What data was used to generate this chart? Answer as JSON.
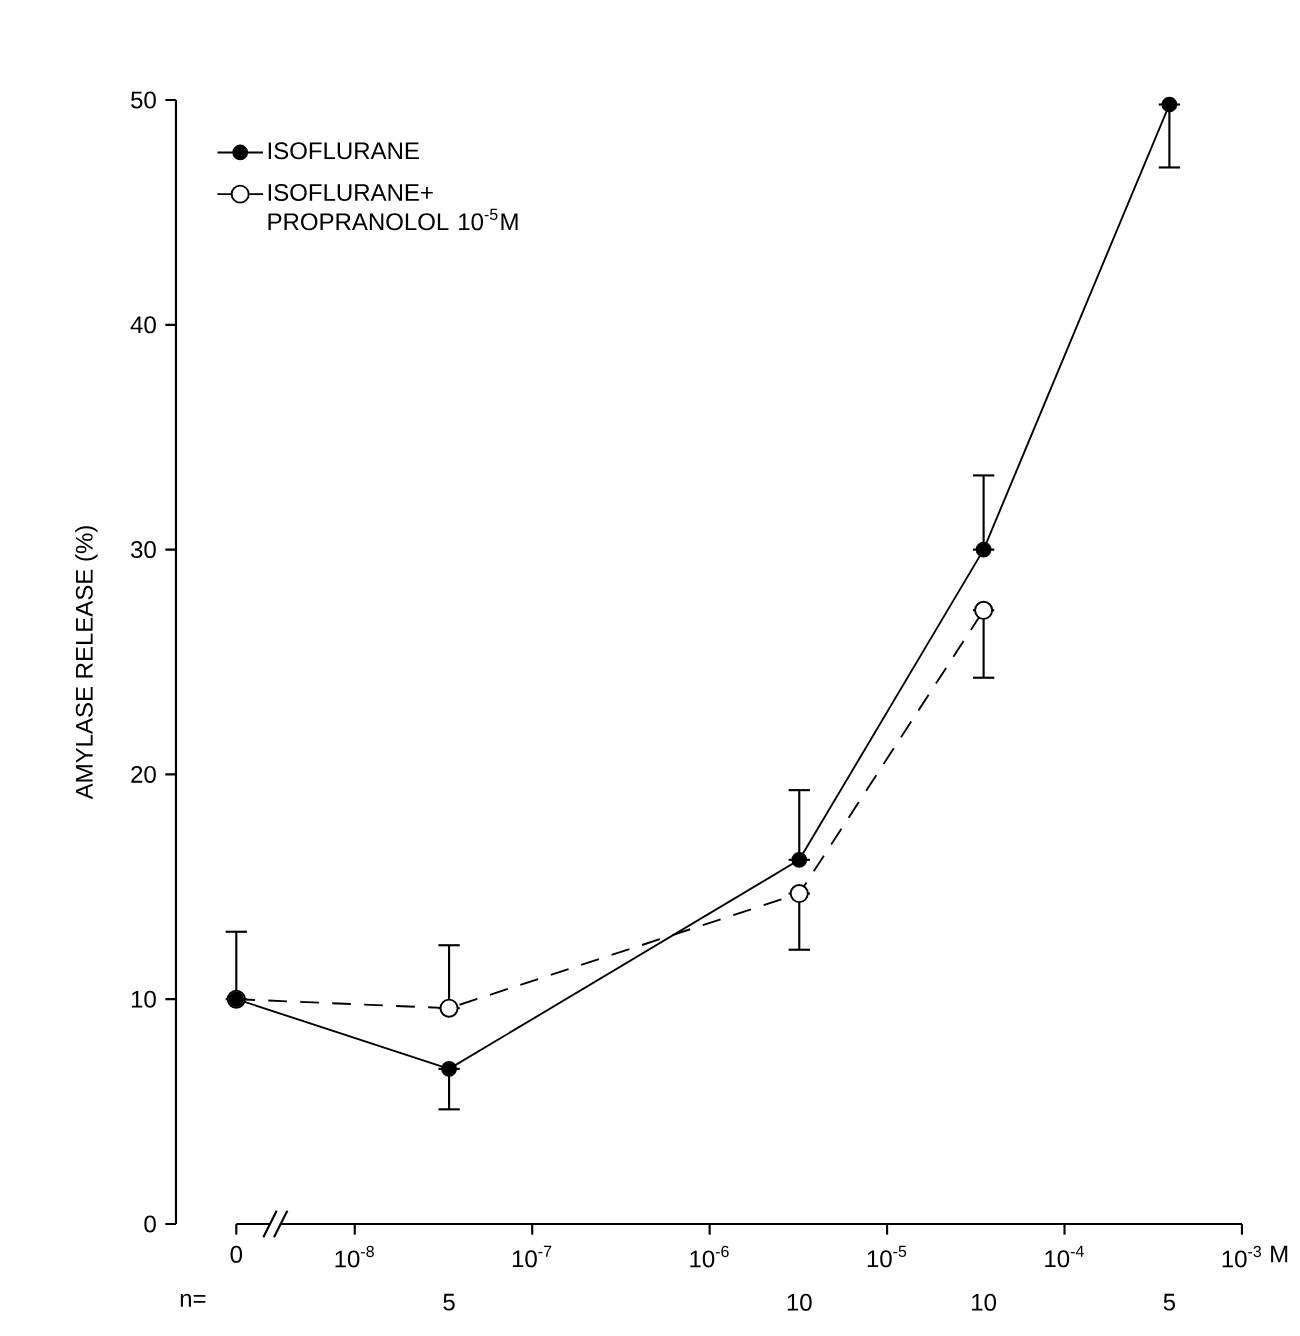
{
  "chart_data": {
    "type": "line",
    "ylabel": "AMYLASE RELEASE (%)",
    "xlabel": "M",
    "log": "x",
    "xlim": [
      2.15e-09,
      0.001
    ],
    "ylim": [
      0,
      50
    ],
    "yticks": [
      0,
      10,
      20,
      30,
      40,
      50
    ],
    "xticks": [
      {
        "value": 2.15e-09,
        "label": "0"
      },
      {
        "value": 1e-08,
        "label": "10$^{-8}$"
      },
      {
        "value": 1e-07,
        "label": "10$^{-7}$"
      },
      {
        "value": 1e-06,
        "label": "10$^{-6}$"
      },
      {
        "value": 1e-05,
        "label": "10$^{-5}$"
      },
      {
        "value": 0.0001,
        "label": "10$^{-4}$"
      },
      {
        "value": 0.001,
        "label": "10$^{-3}$"
      }
    ],
    "legend": "top left",
    "marker": "circle",
    "grid": false,
    "series": [
      {
        "name": "ISOFLURANE",
        "color": "#000000",
        "line_style": "solid",
        "x": [
          2.15e-09,
          3.4e-08,
          3.2e-06,
          3.5e-05,
          0.00039
        ],
        "values": [
          10,
          6.9,
          16.2,
          30,
          49.8
        ],
        "errors": [
          [
            10,
            13
          ],
          [
            5.1,
            6.9
          ],
          [
            16.2,
            19.3
          ],
          [
            30,
            33.3
          ],
          [
            47,
            49.8
          ]
        ]
      },
      {
        "name": "ISOFLURANE+ PROPRANOLOL 10$^{-5}$M",
        "color": "#000000",
        "colors": [
          "#ffffff",
          "#ffffff",
          "#ffffff",
          "#ffffff"
        ],
        "line_style": "dashed",
        "x": [
          2.15e-09,
          3.4e-08,
          3.2e-06,
          3.5e-05
        ],
        "values": [
          10,
          9.6,
          14.7,
          27.3
        ],
        "errors": [
          null,
          [
            9.6,
            12.4
          ],
          [
            12.2,
            14.7
          ],
          [
            24.3,
            27.3
          ]
        ]
      }
    ],
    "annotations": [
      "n=",
      "5",
      "10",
      "10",
      "5"
    ]
  }
}
